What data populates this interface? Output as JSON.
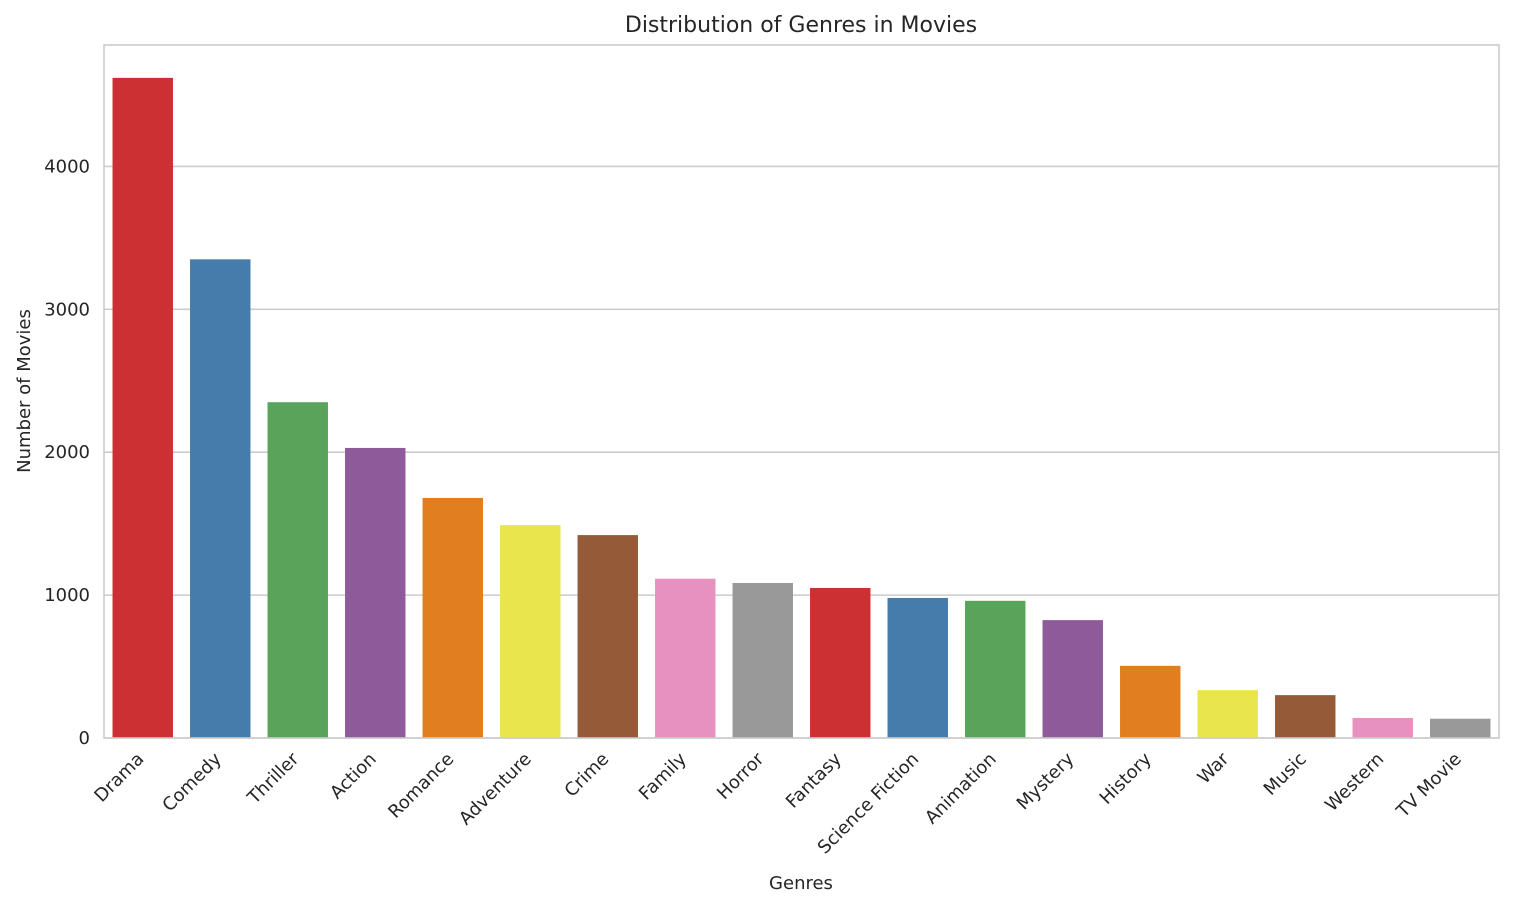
{
  "chart_data": {
    "type": "bar",
    "title": "Distribution of Genres in Movies",
    "xlabel": "Genres",
    "ylabel": "Number of Movies",
    "ylim": [
      0,
      4850
    ],
    "yticks": [
      0,
      1000,
      2000,
      3000,
      4000
    ],
    "grid": "horizontal",
    "legend": "none",
    "categories": [
      "Drama",
      "Comedy",
      "Thriller",
      "Action",
      "Romance",
      "Adventure",
      "Crime",
      "Family",
      "Horror",
      "Fantasy",
      "Science Fiction",
      "Animation",
      "Mystery",
      "History",
      "War",
      "Music",
      "Western",
      "TV Movie"
    ],
    "values": [
      4620,
      3350,
      2350,
      2030,
      1680,
      1490,
      1420,
      1115,
      1085,
      1050,
      980,
      960,
      825,
      505,
      335,
      300,
      140,
      135
    ],
    "colors": [
      "#cd3033",
      "#467cab",
      "#59a45a",
      "#8f5a9a",
      "#e07e20",
      "#e8e54d",
      "#955b38",
      "#e791c0",
      "#999999",
      "#cd3033",
      "#467cab",
      "#59a45a",
      "#8f5a9a",
      "#e07e20",
      "#e8e54d",
      "#955b38",
      "#e791c0",
      "#999999"
    ]
  }
}
